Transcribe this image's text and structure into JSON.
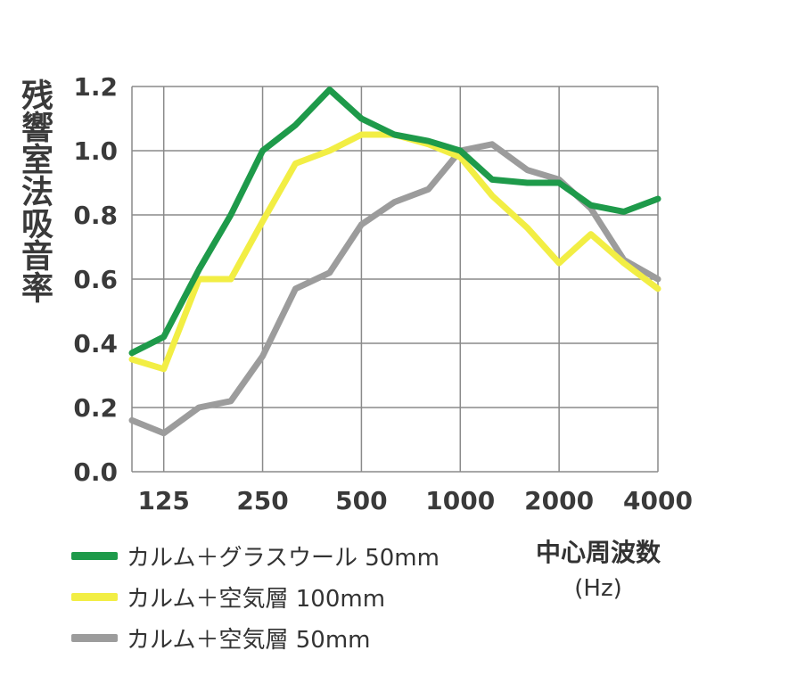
{
  "chart_data": {
    "type": "line",
    "ylabel": "残響室法吸音率",
    "xlabel": "中心周波数",
    "xunit": "(Hz)",
    "x": [
      100,
      125,
      160,
      200,
      250,
      315,
      400,
      500,
      630,
      800,
      1000,
      1250,
      1600,
      2000,
      2500,
      3150,
      4000
    ],
    "xticks": [
      "125",
      "250",
      "500",
      "1000",
      "2000",
      "4000"
    ],
    "xtick_values": [
      125,
      250,
      500,
      1000,
      2000,
      4000
    ],
    "yticks": [
      "0.0",
      "0.2",
      "0.4",
      "0.6",
      "0.8",
      "1.0",
      "1.2"
    ],
    "ylim": [
      0,
      1.2
    ],
    "xscale": "log",
    "grid": true,
    "legend_position": "bottom-left",
    "series": [
      {
        "name": "カルム＋グラスウール 50mm",
        "color": "#1e9a4a",
        "values": [
          0.37,
          0.42,
          0.63,
          0.8,
          1.0,
          1.08,
          1.19,
          1.1,
          1.05,
          1.03,
          1.0,
          0.91,
          0.9,
          0.9,
          0.83,
          0.81,
          0.85
        ]
      },
      {
        "name": "カルム＋空気層 100mm",
        "color": "#f2ee44",
        "values": [
          0.35,
          0.32,
          0.6,
          0.6,
          0.78,
          0.96,
          1.0,
          1.05,
          1.05,
          1.02,
          0.98,
          0.86,
          0.76,
          0.65,
          0.74,
          0.65,
          0.57
        ]
      },
      {
        "name": "カルム＋空気層 50mm",
        "color": "#9c9c9c",
        "values": [
          0.16,
          0.12,
          0.2,
          0.22,
          0.36,
          0.57,
          0.62,
          0.77,
          0.84,
          0.88,
          1.0,
          1.02,
          0.94,
          0.91,
          0.82,
          0.66,
          0.6
        ]
      }
    ]
  }
}
